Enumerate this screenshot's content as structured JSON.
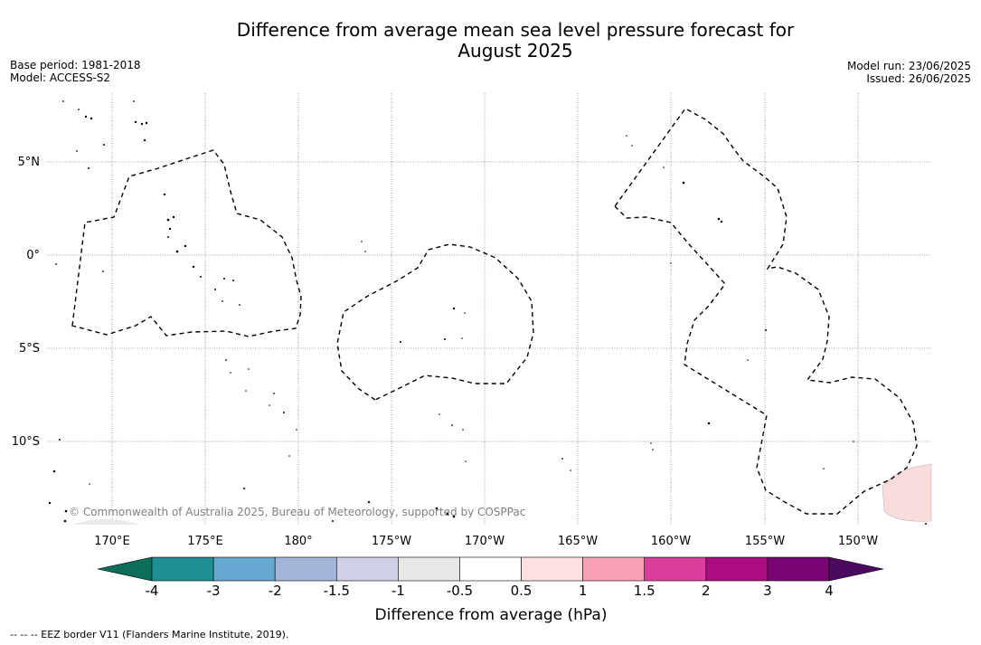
{
  "header": {
    "title_line1": "Difference from average mean sea level pressure forecast for",
    "title_line2": "August 2025",
    "base_period": "Base period: 1981-2018",
    "model": "Model: ACCESS-S2",
    "model_run": "Model run: 23/06/2025",
    "issued": "Issued: 26/06/2025"
  },
  "map": {
    "lat_labels": [
      "5°N",
      "0°",
      "5°S",
      "10°S"
    ],
    "lon_labels": [
      "170°E",
      "175°E",
      "180°",
      "175°W",
      "170°W",
      "165°W",
      "160°W",
      "155°W",
      "150°W"
    ],
    "copyright": "© Commonwealth of Australia 2025, Bureau of Meteorology, supported by COSPPac",
    "colors": {
      "land_fill": "#e9e9e9",
      "anomaly_patch": "#fbdcdc",
      "grid": "#888888"
    }
  },
  "colorbar": {
    "title": "Difference from average (hPa)",
    "tick_labels": [
      "-4",
      "-3",
      "-2",
      "-1.5",
      "-1",
      "-0.5",
      "0.5",
      "1",
      "1.5",
      "2",
      "3",
      "4"
    ],
    "low_extend_color": "#0e6e5c",
    "high_extend_color": "#4b0a5e",
    "bins": [
      {
        "from": -4,
        "to": -3,
        "color": "#1f8f95"
      },
      {
        "from": -3,
        "to": -2,
        "color": "#66a8d2"
      },
      {
        "from": -2,
        "to": -1.5,
        "color": "#a3b6da"
      },
      {
        "from": -1.5,
        "to": -1,
        "color": "#cfd1e8"
      },
      {
        "from": -1,
        "to": -0.5,
        "color": "#e7e7e7"
      },
      {
        "from": -0.5,
        "to": 0.5,
        "color": "#ffffff"
      },
      {
        "from": 0.5,
        "to": 1,
        "color": "#fde1e0"
      },
      {
        "from": 1,
        "to": 1.5,
        "color": "#f8a1b4"
      },
      {
        "from": 1.5,
        "to": 2,
        "color": "#db3e9c"
      },
      {
        "from": 2,
        "to": 3,
        "color": "#ad0b7f"
      },
      {
        "from": 3,
        "to": 4,
        "color": "#790574"
      }
    ]
  },
  "footer": {
    "legend_text": "--  --  -- EEZ border V11 (Flanders Marine Institute, 2019)."
  }
}
